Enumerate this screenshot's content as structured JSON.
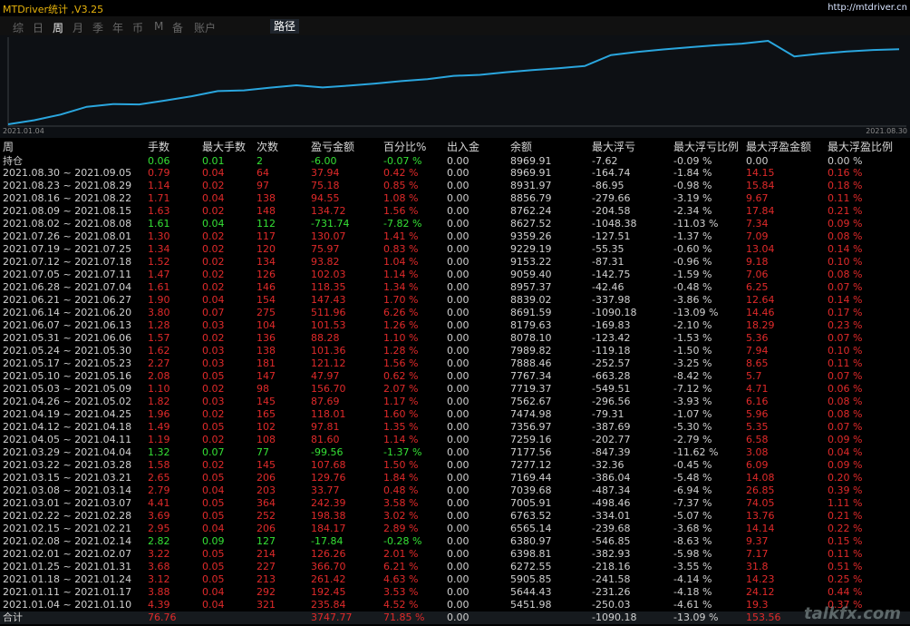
{
  "window": {
    "title": "MTDriver统计 ,V3.25",
    "site": "http://mtdriver.cn"
  },
  "tabs": [
    "综",
    "日",
    "周",
    "月",
    "季",
    "年",
    "币",
    "M",
    "备",
    "账户"
  ],
  "active_tab": "周",
  "path_button": "路径",
  "chart": {
    "start_label": "2021.01.04",
    "end_label": "2021.08.30",
    "line_color": "#2aa6de",
    "balance_series": [
      5451.98,
      5644.43,
      5905.85,
      6272.55,
      6398.81,
      6380.97,
      6565.14,
      6763.52,
      7005.91,
      7039.68,
      7169.44,
      7277.12,
      7177.56,
      7259.16,
      7356.97,
      7474.98,
      7562.67,
      7719.37,
      7767.34,
      7888.46,
      7989.82,
      8078.1,
      8179.63,
      8691.59,
      8839.02,
      8957.37,
      9059.4,
      9153.22,
      9229.19,
      9359.26,
      8627.52,
      8762.24,
      8856.79,
      8931.97,
      8969.91
    ]
  },
  "table": {
    "headers": [
      "周",
      "手数",
      "最大手数",
      "次数",
      "盈亏金额",
      "百分比%",
      "出入金",
      "余额",
      "最大浮亏",
      "最大浮亏比例",
      "最大浮盈金额",
      "最大浮盈比例"
    ],
    "open_position": {
      "label": "持仓",
      "values": [
        "0.06",
        "0.01",
        "2",
        "-6.00",
        "-0.07 %",
        "0.00",
        "8969.91",
        "-7.62",
        "-0.09 %",
        "0.00",
        "0.00 %"
      ]
    },
    "rows": [
      [
        "2021.08.30 ~ 2021.09.05",
        "0.79",
        "0.04",
        "64",
        "37.94",
        "0.42 %",
        "0.00",
        "8969.91",
        "-164.74",
        "-1.84 %",
        "14.15",
        "0.16 %"
      ],
      [
        "2021.08.23 ~ 2021.08.29",
        "1.14",
        "0.02",
        "97",
        "75.18",
        "0.85 %",
        "0.00",
        "8931.97",
        "-86.95",
        "-0.98 %",
        "15.84",
        "0.18 %"
      ],
      [
        "2021.08.16 ~ 2021.08.22",
        "1.71",
        "0.04",
        "138",
        "94.55",
        "1.08 %",
        "0.00",
        "8856.79",
        "-279.66",
        "-3.19 %",
        "9.67",
        "0.11 %"
      ],
      [
        "2021.08.09 ~ 2021.08.15",
        "1.63",
        "0.02",
        "148",
        "134.72",
        "1.56 %",
        "0.00",
        "8762.24",
        "-204.58",
        "-2.34 %",
        "17.84",
        "0.21 %"
      ],
      [
        "2021.08.02 ~ 2021.08.08",
        "1.61",
        "0.04",
        "112",
        "-731.74",
        "-7.82 %",
        "0.00",
        "8627.52",
        "-1048.38",
        "-11.03 %",
        "7.34",
        "0.09 %"
      ],
      [
        "2021.07.26 ~ 2021.08.01",
        "1.30",
        "0.02",
        "117",
        "130.07",
        "1.41 %",
        "0.00",
        "9359.26",
        "-127.51",
        "-1.37 %",
        "7.09",
        "0.08 %"
      ],
      [
        "2021.07.19 ~ 2021.07.25",
        "1.34",
        "0.02",
        "120",
        "75.97",
        "0.83 %",
        "0.00",
        "9229.19",
        "-55.35",
        "-0.60 %",
        "13.04",
        "0.14 %"
      ],
      [
        "2021.07.12 ~ 2021.07.18",
        "1.52",
        "0.02",
        "134",
        "93.82",
        "1.04 %",
        "0.00",
        "9153.22",
        "-87.31",
        "-0.96 %",
        "9.18",
        "0.10 %"
      ],
      [
        "2021.07.05 ~ 2021.07.11",
        "1.47",
        "0.02",
        "126",
        "102.03",
        "1.14 %",
        "0.00",
        "9059.40",
        "-142.75",
        "-1.59 %",
        "7.06",
        "0.08 %"
      ],
      [
        "2021.06.28 ~ 2021.07.04",
        "1.61",
        "0.02",
        "146",
        "118.35",
        "1.34 %",
        "0.00",
        "8957.37",
        "-42.46",
        "-0.48 %",
        "6.25",
        "0.07 %"
      ],
      [
        "2021.06.21 ~ 2021.06.27",
        "1.90",
        "0.04",
        "154",
        "147.43",
        "1.70 %",
        "0.00",
        "8839.02",
        "-337.98",
        "-3.86 %",
        "12.64",
        "0.14 %"
      ],
      [
        "2021.06.14 ~ 2021.06.20",
        "3.80",
        "0.07",
        "275",
        "511.96",
        "6.26 %",
        "0.00",
        "8691.59",
        "-1090.18",
        "-13.09 %",
        "14.46",
        "0.17 %"
      ],
      [
        "2021.06.07 ~ 2021.06.13",
        "1.28",
        "0.03",
        "104",
        "101.53",
        "1.26 %",
        "0.00",
        "8179.63",
        "-169.83",
        "-2.10 %",
        "18.29",
        "0.23 %"
      ],
      [
        "2021.05.31 ~ 2021.06.06",
        "1.57",
        "0.02",
        "136",
        "88.28",
        "1.10 %",
        "0.00",
        "8078.10",
        "-123.42",
        "-1.53 %",
        "5.36",
        "0.07 %"
      ],
      [
        "2021.05.24 ~ 2021.05.30",
        "1.62",
        "0.03",
        "138",
        "101.36",
        "1.28 %",
        "0.00",
        "7989.82",
        "-119.18",
        "-1.50 %",
        "7.94",
        "0.10 %"
      ],
      [
        "2021.05.17 ~ 2021.05.23",
        "2.27",
        "0.03",
        "181",
        "121.12",
        "1.56 %",
        "0.00",
        "7888.46",
        "-252.57",
        "-3.25 %",
        "8.65",
        "0.11 %"
      ],
      [
        "2021.05.10 ~ 2021.05.16",
        "2.08",
        "0.05",
        "147",
        "47.97",
        "0.62 %",
        "0.00",
        "7767.34",
        "-663.28",
        "-8.42 %",
        "5.7",
        "0.07 %"
      ],
      [
        "2021.05.03 ~ 2021.05.09",
        "1.10",
        "0.02",
        "98",
        "156.70",
        "2.07 %",
        "0.00",
        "7719.37",
        "-549.51",
        "-7.12 %",
        "4.71",
        "0.06 %"
      ],
      [
        "2021.04.26 ~ 2021.05.02",
        "1.82",
        "0.03",
        "145",
        "87.69",
        "1.17 %",
        "0.00",
        "7562.67",
        "-296.56",
        "-3.93 %",
        "6.16",
        "0.08 %"
      ],
      [
        "2021.04.19 ~ 2021.04.25",
        "1.96",
        "0.02",
        "165",
        "118.01",
        "1.60 %",
        "0.00",
        "7474.98",
        "-79.31",
        "-1.07 %",
        "5.96",
        "0.08 %"
      ],
      [
        "2021.04.12 ~ 2021.04.18",
        "1.49",
        "0.05",
        "102",
        "97.81",
        "1.35 %",
        "0.00",
        "7356.97",
        "-387.69",
        "-5.30 %",
        "5.35",
        "0.07 %"
      ],
      [
        "2021.04.05 ~ 2021.04.11",
        "1.19",
        "0.02",
        "108",
        "81.60",
        "1.14 %",
        "0.00",
        "7259.16",
        "-202.77",
        "-2.79 %",
        "6.58",
        "0.09 %"
      ],
      [
        "2021.03.29 ~ 2021.04.04",
        "1.32",
        "0.07",
        "77",
        "-99.56",
        "-1.37 %",
        "0.00",
        "7177.56",
        "-847.39",
        "-11.62 %",
        "3.08",
        "0.04 %"
      ],
      [
        "2021.03.22 ~ 2021.03.28",
        "1.58",
        "0.02",
        "145",
        "107.68",
        "1.50 %",
        "0.00",
        "7277.12",
        "-32.36",
        "-0.45 %",
        "6.09",
        "0.09 %"
      ],
      [
        "2021.03.15 ~ 2021.03.21",
        "2.65",
        "0.05",
        "206",
        "129.76",
        "1.84 %",
        "0.00",
        "7169.44",
        "-386.04",
        "-5.48 %",
        "14.08",
        "0.20 %"
      ],
      [
        "2021.03.08 ~ 2021.03.14",
        "2.79",
        "0.04",
        "203",
        "33.77",
        "0.48 %",
        "0.00",
        "7039.68",
        "-487.34",
        "-6.94 %",
        "26.85",
        "0.39 %"
      ],
      [
        "2021.03.01 ~ 2021.03.07",
        "4.41",
        "0.05",
        "364",
        "242.39",
        "3.58 %",
        "0.00",
        "7005.91",
        "-498.46",
        "-7.37 %",
        "74.05",
        "1.11 %"
      ],
      [
        "2021.02.22 ~ 2021.02.28",
        "3.69",
        "0.05",
        "252",
        "198.38",
        "3.02 %",
        "0.00",
        "6763.52",
        "-334.01",
        "-5.07 %",
        "13.76",
        "0.21 %"
      ],
      [
        "2021.02.15 ~ 2021.02.21",
        "2.95",
        "0.04",
        "206",
        "184.17",
        "2.89 %",
        "0.00",
        "6565.14",
        "-239.68",
        "-3.68 %",
        "14.14",
        "0.22 %"
      ],
      [
        "2021.02.08 ~ 2021.02.14",
        "2.82",
        "0.09",
        "127",
        "-17.84",
        "-0.28 %",
        "0.00",
        "6380.97",
        "-546.85",
        "-8.63 %",
        "9.37",
        "0.15 %"
      ],
      [
        "2021.02.01 ~ 2021.02.07",
        "3.22",
        "0.05",
        "214",
        "126.26",
        "2.01 %",
        "0.00",
        "6398.81",
        "-382.93",
        "-5.98 %",
        "7.17",
        "0.11 %"
      ],
      [
        "2021.01.25 ~ 2021.01.31",
        "3.68",
        "0.05",
        "227",
        "366.70",
        "6.21 %",
        "0.00",
        "6272.55",
        "-218.16",
        "-3.55 %",
        "31.8",
        "0.51 %"
      ],
      [
        "2021.01.18 ~ 2021.01.24",
        "3.12",
        "0.05",
        "213",
        "261.42",
        "4.63 %",
        "0.00",
        "5905.85",
        "-241.58",
        "-4.14 %",
        "14.23",
        "0.25 %"
      ],
      [
        "2021.01.11 ~ 2021.01.17",
        "3.88",
        "0.04",
        "292",
        "192.45",
        "3.53 %",
        "0.00",
        "5644.43",
        "-231.26",
        "-4.18 %",
        "24.12",
        "0.44 %"
      ],
      [
        "2021.01.04 ~ 2021.01.10",
        "4.39",
        "0.04",
        "321",
        "235.84",
        "4.52 %",
        "0.00",
        "5451.98",
        "-250.03",
        "-4.61 %",
        "19.3",
        "0.37 %"
      ]
    ],
    "total": {
      "label": "合计",
      "values": [
        "76.76",
        "",
        "",
        "3747.77",
        "71.85 %",
        "0.00",
        "",
        "-1090.18",
        "-13.09 %",
        "153.56",
        ""
      ]
    }
  },
  "watermark": "talkfx.com",
  "colors": {
    "positive": "#e02a2a",
    "negative": "#35e035",
    "accent": "#2aa6de",
    "title": "#e8b40c"
  }
}
